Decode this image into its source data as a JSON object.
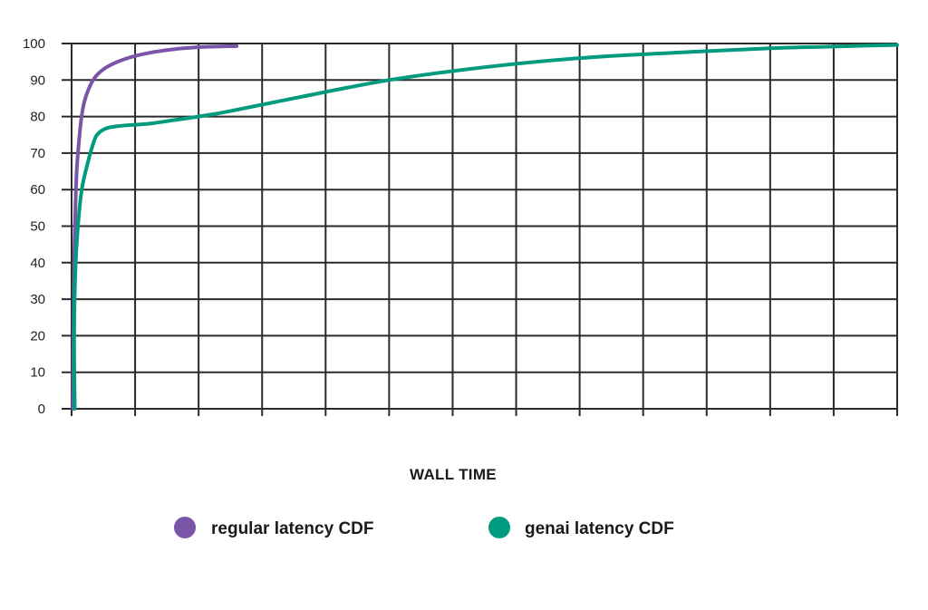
{
  "chart_data": {
    "type": "line",
    "title": "",
    "xlabel": "WALL TIME",
    "ylabel": "",
    "ylim": [
      0,
      100
    ],
    "yticks": [
      "0",
      "10",
      "20",
      "30",
      "40",
      "50",
      "60",
      "70",
      "80",
      "90",
      "100"
    ],
    "xlim": [
      0,
      13
    ],
    "x_gridlines": 13,
    "grid": true,
    "legend_position": "bottom",
    "series": [
      {
        "name": "regular latency CDF",
        "color": "#7b55a8",
        "x": [
          0.02,
          0.03,
          0.04,
          0.06,
          0.08,
          0.11,
          0.15,
          0.2,
          0.28,
          0.38,
          0.55,
          0.8,
          1.1,
          1.5,
          2.0,
          2.6
        ],
        "y": [
          0,
          20,
          40,
          55,
          65,
          72,
          79,
          84,
          88,
          91,
          93.5,
          95.5,
          97,
          98.2,
          99,
          99.3
        ]
      },
      {
        "name": "genai latency CDF",
        "color": "#009a7f",
        "x": [
          0.05,
          0.04,
          0.06,
          0.1,
          0.16,
          0.25,
          0.33,
          0.4,
          0.55,
          0.8,
          1.2,
          1.6,
          2.0,
          2.5,
          3.5,
          5.0,
          6.5,
          8.0,
          9.5,
          11.0,
          12.5,
          13.0
        ],
        "y": [
          0,
          20,
          38,
          50,
          60,
          67,
          72,
          75,
          76.8,
          77.5,
          78,
          79,
          80,
          81.5,
          85,
          90,
          93.5,
          96,
          97.5,
          98.7,
          99.4,
          99.6
        ]
      }
    ]
  }
}
